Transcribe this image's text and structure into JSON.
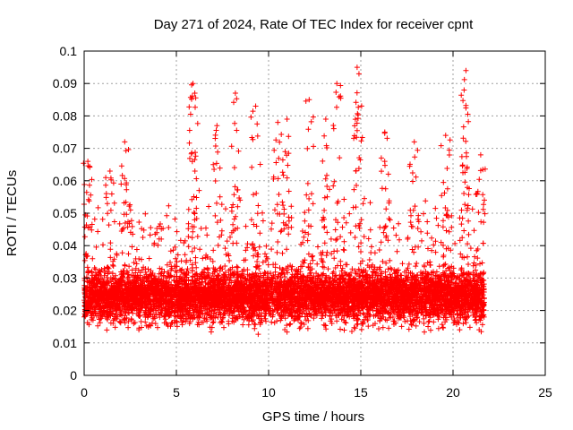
{
  "chart_data": {
    "type": "scatter",
    "title": "Day 271 of 2024, Rate Of TEC Index for receiver cpnt",
    "xlabel": "GPS time / hours",
    "ylabel": "ROTI / TECUs",
    "xlim": [
      0,
      25
    ],
    "ylim": [
      0,
      0.1
    ],
    "xticks": [
      "0",
      "5",
      "10",
      "15",
      "20",
      "25"
    ],
    "yticks": [
      "0",
      "0.01",
      "0.02",
      "0.03",
      "0.04",
      "0.05",
      "0.06",
      "0.07",
      "0.08",
      "0.09",
      "0.1"
    ],
    "grid": true,
    "marker": "plus",
    "series_color": "#ff0000",
    "data_x_range": [
      0,
      21.7
    ],
    "typical_band": [
      0.01,
      0.045
    ],
    "peaks": [
      {
        "x": 0.2,
        "y": 0.066
      },
      {
        "x": 1.4,
        "y": 0.063
      },
      {
        "x": 2.2,
        "y": 0.072
      },
      {
        "x": 5.9,
        "y": 0.09
      },
      {
        "x": 6.0,
        "y": 0.087
      },
      {
        "x": 7.2,
        "y": 0.077
      },
      {
        "x": 8.2,
        "y": 0.087
      },
      {
        "x": 9.3,
        "y": 0.083
      },
      {
        "x": 10.5,
        "y": 0.078
      },
      {
        "x": 11.0,
        "y": 0.079
      },
      {
        "x": 12.2,
        "y": 0.085
      },
      {
        "x": 13.1,
        "y": 0.079
      },
      {
        "x": 13.7,
        "y": 0.09
      },
      {
        "x": 14.8,
        "y": 0.095
      },
      {
        "x": 14.9,
        "y": 0.093
      },
      {
        "x": 16.3,
        "y": 0.075
      },
      {
        "x": 17.9,
        "y": 0.072
      },
      {
        "x": 19.6,
        "y": 0.074
      },
      {
        "x": 20.7,
        "y": 0.094
      },
      {
        "x": 20.6,
        "y": 0.088
      },
      {
        "x": 21.5,
        "y": 0.068
      }
    ]
  }
}
